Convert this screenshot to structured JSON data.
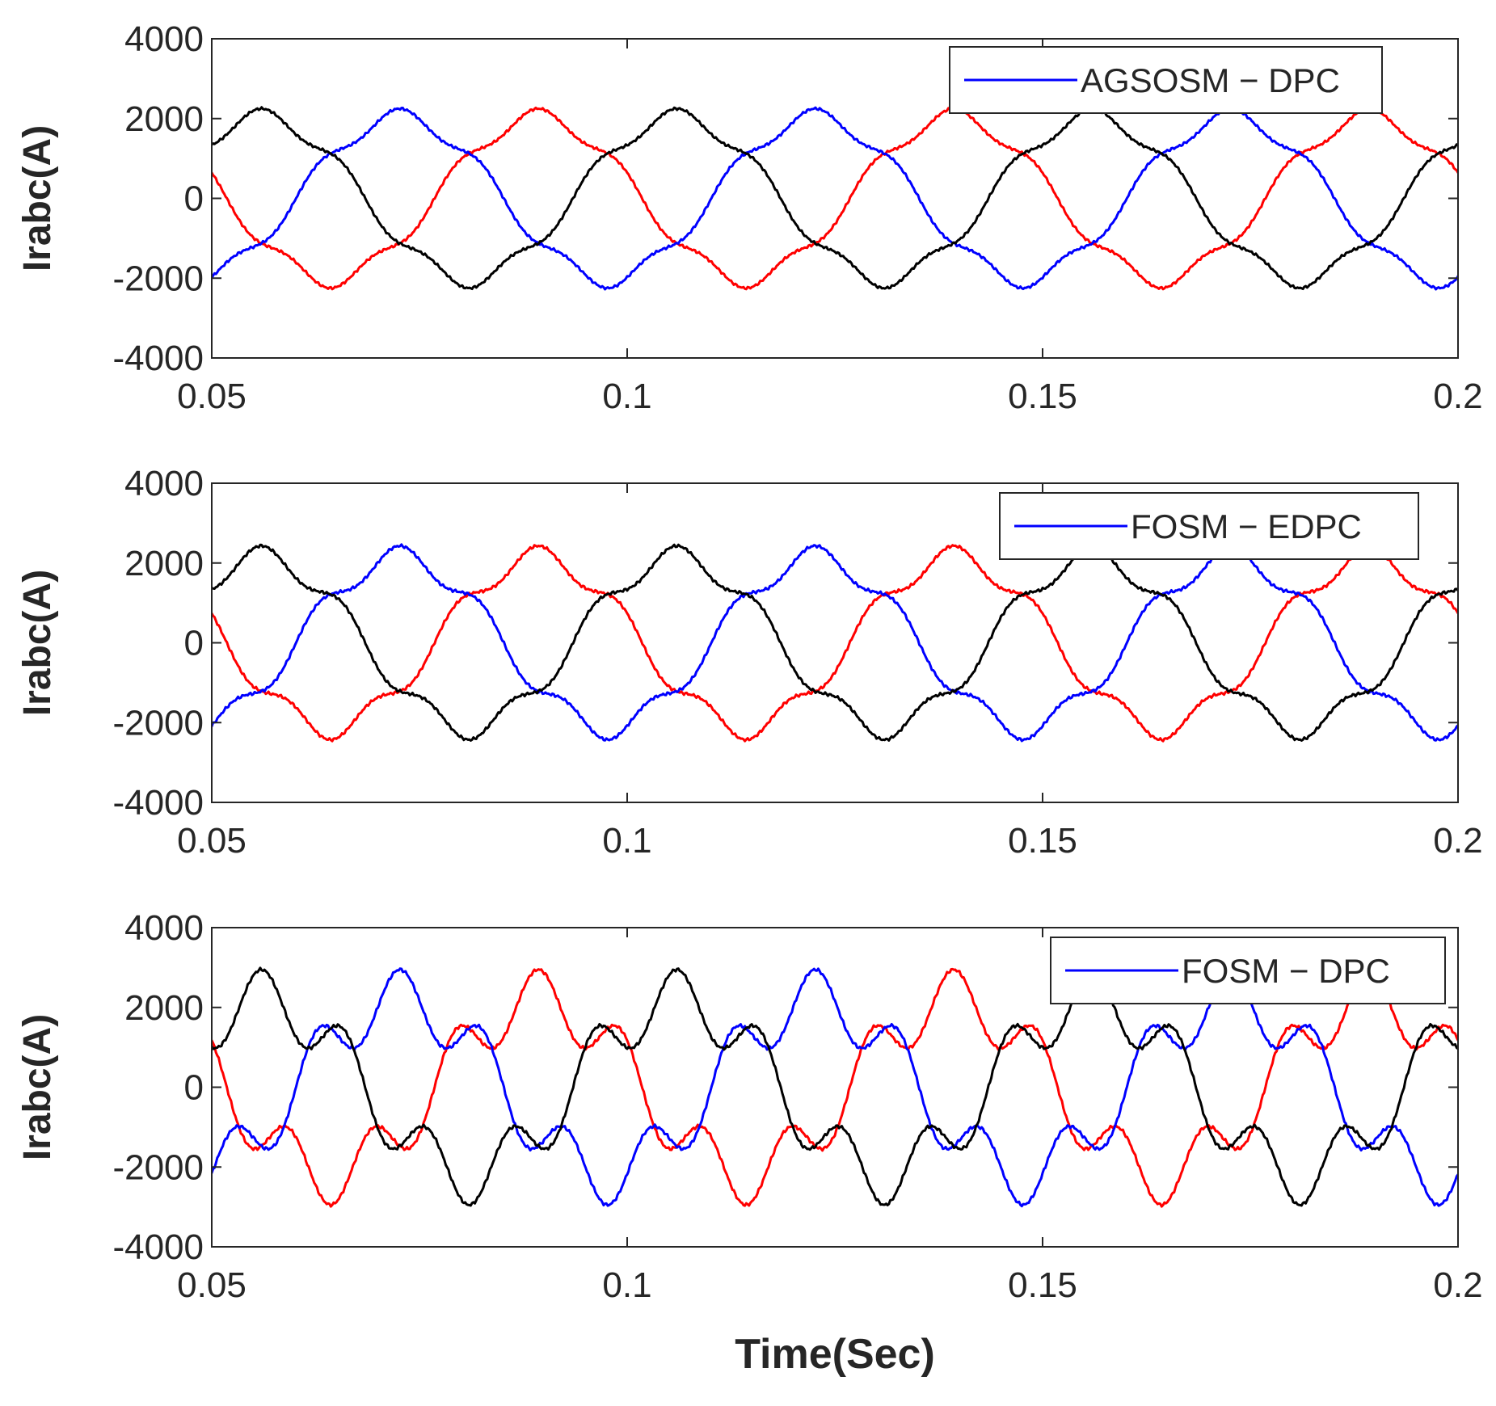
{
  "chart_data": [
    {
      "type": "line",
      "legend_label": "AGSOSM − DPC",
      "legend_color": "#0000ff",
      "ylabel": "Irabc(A)",
      "xlabel": "",
      "xlim": [
        0.05,
        0.2
      ],
      "ylim": [
        -4000,
        4000
      ],
      "xticks": [
        0.05,
        0.1,
        0.15,
        0.2
      ],
      "xtick_labels": [
        "0.05",
        "0.1",
        "0.15",
        "0.2"
      ],
      "yticks": [
        4000,
        2000,
        0,
        -2000,
        -4000
      ],
      "ytick_labels": [
        "4000",
        "2000",
        "0",
        "-2000",
        "-4000"
      ],
      "legend_position": "top-right",
      "fundamental_hz": 20,
      "harmonic": {
        "order": 5,
        "amplitude": 200,
        "phase_deg": 0
      },
      "ripple": 35,
      "series": [
        {
          "name": "phase-a",
          "color": "#ff0000",
          "amplitude": 2050,
          "phase_deg": 167
        },
        {
          "name": "phase-b",
          "color": "#0000ff",
          "amplitude": 2050,
          "phase_deg": -73
        },
        {
          "name": "phase-c",
          "color": "#000000",
          "amplitude": 2050,
          "phase_deg": 47
        }
      ]
    },
    {
      "type": "line",
      "legend_label": "FOSM − EDPC",
      "legend_color": "#0000ff",
      "ylabel": "Irabc(A)",
      "xlabel": "",
      "xlim": [
        0.05,
        0.2
      ],
      "ylim": [
        -4000,
        4000
      ],
      "xticks": [
        0.05,
        0.1,
        0.15,
        0.2
      ],
      "xtick_labels": [
        "0.05",
        "0.1",
        "0.15",
        "0.2"
      ],
      "yticks": [
        4000,
        2000,
        0,
        -2000,
        -4000
      ],
      "ytick_labels": [
        "4000",
        "2000",
        "0",
        "-2000",
        "-4000"
      ],
      "legend_position": "top-right",
      "fundamental_hz": 20,
      "harmonic": {
        "order": 5,
        "amplitude": 280,
        "phase_deg": 0
      },
      "ripple": 40,
      "series": [
        {
          "name": "phase-a",
          "color": "#ff0000",
          "amplitude": 2150,
          "phase_deg": 167
        },
        {
          "name": "phase-b",
          "color": "#0000ff",
          "amplitude": 2150,
          "phase_deg": -73
        },
        {
          "name": "phase-c",
          "color": "#000000",
          "amplitude": 2150,
          "phase_deg": 47
        }
      ]
    },
    {
      "type": "line",
      "legend_label": "FOSM − DPC",
      "legend_color": "#0000ff",
      "ylabel": "Irabc(A)",
      "xlabel": "Time(Sec)",
      "xlim": [
        0.05,
        0.2
      ],
      "ylim": [
        -4000,
        4000
      ],
      "xticks": [
        0.05,
        0.1,
        0.15,
        0.2
      ],
      "xtick_labels": [
        "0.05",
        "0.1",
        "0.15",
        "0.2"
      ],
      "yticks": [
        4000,
        2000,
        0,
        -2000,
        -4000
      ],
      "ytick_labels": [
        "4000",
        "2000",
        "0",
        "-2000",
        "-4000"
      ],
      "legend_position": "top-right",
      "fundamental_hz": 20,
      "harmonic": {
        "order": 5,
        "amplitude": 750,
        "phase_deg": 0
      },
      "ripple": 45,
      "series": [
        {
          "name": "phase-a",
          "color": "#ff0000",
          "amplitude": 2200,
          "phase_deg": 167
        },
        {
          "name": "phase-b",
          "color": "#0000ff",
          "amplitude": 2200,
          "phase_deg": -73
        },
        {
          "name": "phase-c",
          "color": "#000000",
          "amplitude": 2200,
          "phase_deg": 47
        }
      ]
    }
  ]
}
